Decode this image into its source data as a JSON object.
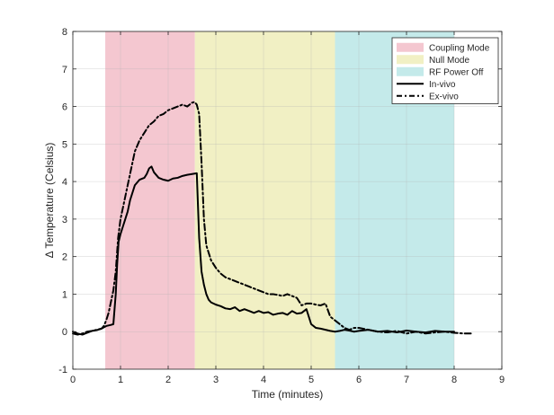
{
  "chart_data": {
    "type": "line",
    "title": "",
    "xlabel": "Time (minutes)",
    "ylabel": "Δ Temperature (Celsius)",
    "xlim": [
      0,
      9
    ],
    "ylim": [
      -1,
      8
    ],
    "xticks": [
      "0",
      "1",
      "2",
      "3",
      "4",
      "5",
      "6",
      "7",
      "8",
      "9"
    ],
    "yticks": [
      "-1",
      "0",
      "1",
      "2",
      "3",
      "4",
      "5",
      "6",
      "7",
      "8"
    ],
    "grid": true,
    "legend_position": "top-right",
    "regions": [
      {
        "name": "Coupling Mode",
        "x_start": 0.68,
        "x_end": 2.56,
        "color": "#f4c7d0"
      },
      {
        "name": "Null Mode",
        "x_start": 2.56,
        "x_end": 5.5,
        "color": "#f1f0c4"
      },
      {
        "name": "RF Power Off",
        "x_start": 5.5,
        "x_end": 8.0,
        "color": "#c4eaea"
      }
    ],
    "series": [
      {
        "name": "In-vivo",
        "style": "solid",
        "color": "#000000",
        "x": [
          0.0,
          0.1,
          0.2,
          0.3,
          0.4,
          0.5,
          0.6,
          0.7,
          0.8,
          0.85,
          0.9,
          0.93,
          0.96,
          1.0,
          1.05,
          1.1,
          1.15,
          1.2,
          1.3,
          1.4,
          1.5,
          1.55,
          1.6,
          1.65,
          1.7,
          1.8,
          1.9,
          2.0,
          2.1,
          2.2,
          2.3,
          2.4,
          2.5,
          2.6,
          2.65,
          2.7,
          2.75,
          2.8,
          2.85,
          2.9,
          3.0,
          3.1,
          3.2,
          3.3,
          3.4,
          3.5,
          3.6,
          3.7,
          3.8,
          3.9,
          4.0,
          4.1,
          4.2,
          4.3,
          4.4,
          4.5,
          4.6,
          4.7,
          4.8,
          4.9,
          5.0,
          5.1,
          5.2,
          5.3,
          5.4,
          5.5,
          5.6,
          5.7,
          5.8,
          5.9,
          6.0,
          6.2,
          6.4,
          6.6,
          6.8,
          7.0,
          7.2,
          7.4,
          7.6,
          7.8,
          8.0
        ],
        "y": [
          0.0,
          -0.05,
          -0.08,
          -0.03,
          0.02,
          0.04,
          0.08,
          0.15,
          0.18,
          0.2,
          1.0,
          1.8,
          2.4,
          2.6,
          2.8,
          3.0,
          3.2,
          3.5,
          3.9,
          4.05,
          4.1,
          4.2,
          4.35,
          4.4,
          4.25,
          4.1,
          4.05,
          4.02,
          4.08,
          4.1,
          4.15,
          4.18,
          4.2,
          4.22,
          2.5,
          1.6,
          1.25,
          1.0,
          0.85,
          0.78,
          0.72,
          0.68,
          0.62,
          0.6,
          0.65,
          0.55,
          0.6,
          0.55,
          0.5,
          0.55,
          0.5,
          0.52,
          0.45,
          0.48,
          0.5,
          0.45,
          0.55,
          0.48,
          0.5,
          0.6,
          0.2,
          0.1,
          0.08,
          0.05,
          0.02,
          0.0,
          0.02,
          0.05,
          0.03,
          0.0,
          0.02,
          0.05,
          0.0,
          0.02,
          -0.02,
          0.03,
          0.0,
          -0.02,
          0.02,
          0.0,
          0.0
        ]
      },
      {
        "name": "Ex-vivo",
        "style": "dashed",
        "color": "#000000",
        "x": [
          0.0,
          0.1,
          0.2,
          0.3,
          0.4,
          0.5,
          0.6,
          0.65,
          0.7,
          0.75,
          0.8,
          0.85,
          0.9,
          0.95,
          1.0,
          1.1,
          1.2,
          1.3,
          1.4,
          1.5,
          1.6,
          1.7,
          1.8,
          1.9,
          2.0,
          2.1,
          2.2,
          2.3,
          2.4,
          2.5,
          2.55,
          2.6,
          2.65,
          2.7,
          2.75,
          2.8,
          2.9,
          3.0,
          3.1,
          3.2,
          3.3,
          3.4,
          3.5,
          3.6,
          3.7,
          3.8,
          3.9,
          4.0,
          4.1,
          4.2,
          4.3,
          4.4,
          4.5,
          4.6,
          4.7,
          4.8,
          4.9,
          5.0,
          5.1,
          5.2,
          5.3,
          5.4,
          5.5,
          5.6,
          5.7,
          5.8,
          5.9,
          6.0,
          6.2,
          6.4,
          6.6,
          6.8,
          7.0,
          7.2,
          7.4,
          7.6,
          7.8,
          8.0,
          8.2,
          8.35
        ],
        "y": [
          -0.05,
          -0.08,
          -0.05,
          0.0,
          0.02,
          0.05,
          0.08,
          0.15,
          0.3,
          0.5,
          0.8,
          1.1,
          1.6,
          2.5,
          3.0,
          3.6,
          4.2,
          4.8,
          5.1,
          5.3,
          5.5,
          5.6,
          5.75,
          5.8,
          5.9,
          5.95,
          6.0,
          6.05,
          6.0,
          6.1,
          6.12,
          6.05,
          5.8,
          4.5,
          3.0,
          2.3,
          1.9,
          1.7,
          1.55,
          1.45,
          1.4,
          1.35,
          1.3,
          1.25,
          1.2,
          1.15,
          1.1,
          1.05,
          1.0,
          1.0,
          0.98,
          0.95,
          1.0,
          0.95,
          0.9,
          0.7,
          0.75,
          0.75,
          0.72,
          0.7,
          0.75,
          0.4,
          0.3,
          0.2,
          0.1,
          0.05,
          0.1,
          0.1,
          0.05,
          0.0,
          -0.02,
          0.02,
          -0.05,
          0.0,
          -0.05,
          -0.02,
          0.0,
          -0.03,
          -0.05,
          -0.05
        ]
      }
    ]
  }
}
